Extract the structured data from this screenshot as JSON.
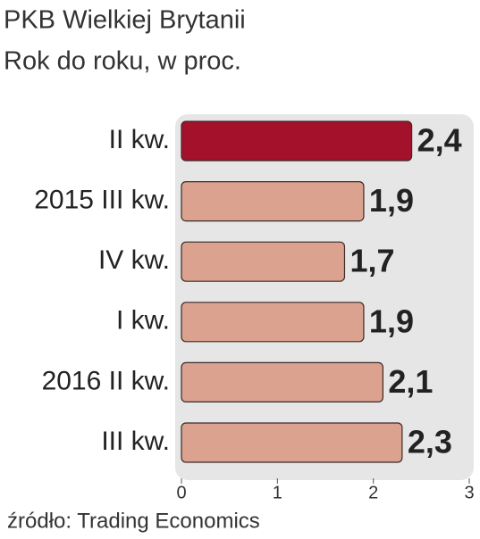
{
  "chart_data": {
    "type": "hbar",
    "title": "PKB Wielkiej Brytanii",
    "subtitle": "Rok do roku, w proc.",
    "categories": [
      "II kw.",
      "2015 III kw.",
      "IV kw.",
      "I kw.",
      "2016 II kw.",
      "III kw."
    ],
    "values": [
      2.4,
      1.9,
      1.7,
      1.9,
      2.1,
      2.3
    ],
    "value_labels": [
      "2,4",
      "1,9",
      "1,7",
      "1,9",
      "2,1",
      "2,3"
    ],
    "colors": [
      "#a3112b",
      "#dba38f",
      "#dba38f",
      "#dba38f",
      "#dba38f",
      "#dba38f"
    ],
    "xlim": [
      0,
      3
    ],
    "xticks": [
      0,
      1,
      2,
      3
    ],
    "source": "źródło: Trading Economics"
  }
}
